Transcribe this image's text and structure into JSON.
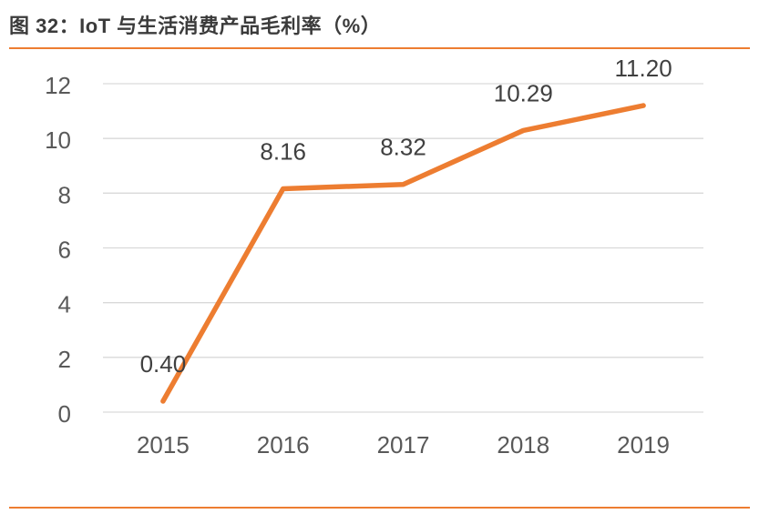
{
  "header": {
    "title": "图 32：IoT 与生活消费产品毛利率（%）"
  },
  "chart_data": {
    "type": "line",
    "title": "图 32：IoT 与生活消费产品毛利率（%）",
    "categories": [
      "2015",
      "2016",
      "2017",
      "2018",
      "2019"
    ],
    "values": [
      0.4,
      8.16,
      8.32,
      10.29,
      11.2
    ],
    "data_labels": [
      "0.40",
      "8.16",
      "8.32",
      "10.29",
      "11.20"
    ],
    "y_ticks": [
      0,
      2,
      4,
      6,
      8,
      10,
      12
    ],
    "ylim": [
      0,
      12
    ],
    "xlabel": "",
    "ylabel": "",
    "grid": true,
    "legend_position": "none",
    "colors": {
      "line": "#ED7D31",
      "gridline": "#D9D9D9",
      "axis_label": "#595959",
      "data_label": "#404040",
      "title": "#3B3B3B",
      "accent_rule": "#ED7D31"
    }
  }
}
